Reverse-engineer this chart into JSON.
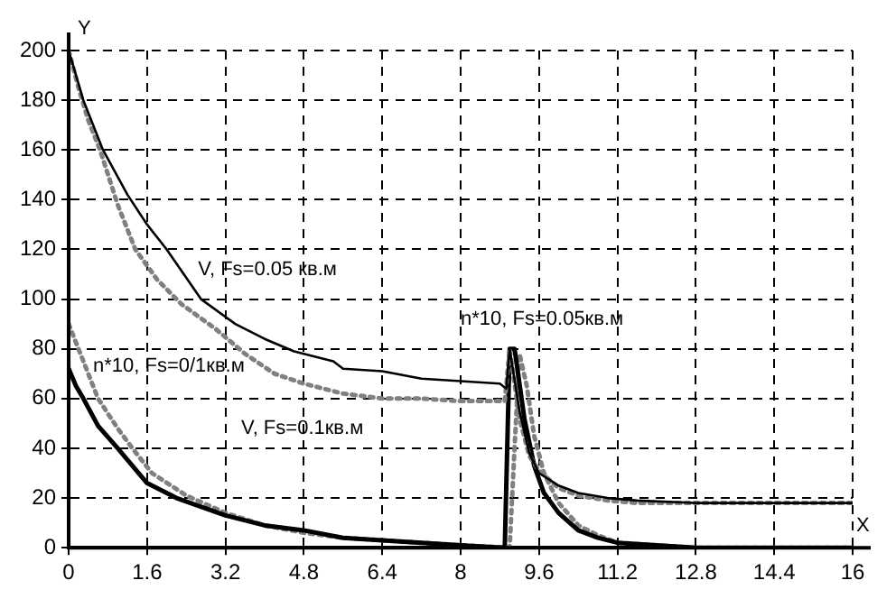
{
  "chart_data": {
    "type": "line",
    "xlabel": "X",
    "ylabel": "Y",
    "xlim": [
      0,
      16
    ],
    "ylim": [
      0,
      200
    ],
    "xticks": [
      0,
      1.6,
      3.2,
      4.8,
      6.4,
      8,
      9.6,
      11.2,
      12.8,
      14.4,
      16
    ],
    "yticks": [
      0,
      20,
      40,
      60,
      80,
      100,
      120,
      140,
      160,
      180,
      200
    ],
    "grid": true,
    "marker": "none",
    "series": [
      {
        "color": "#000000",
        "line_style": "solid",
        "x": [
          0,
          0.3,
          0.7,
          1.2,
          1.6,
          2.0,
          2.7,
          3.4,
          4.0,
          4.6,
          5.4,
          5.6,
          6.4,
          7.2,
          8.0,
          8.8,
          8.93,
          9.0,
          9.2,
          9.4,
          9.6,
          10.0,
          10.4,
          11.0,
          11.6,
          12.8,
          14.4,
          16
        ],
        "values": [
          200,
          180,
          160,
          142,
          130,
          120,
          100,
          90,
          84,
          79,
          75,
          72,
          71,
          68,
          67,
          66,
          64,
          80,
          55,
          38,
          30,
          25,
          22,
          20,
          19,
          18,
          18,
          18
        ]
      },
      {
        "color": "#808080",
        "line_style": "dotted",
        "x": [
          0,
          0.2,
          0.4,
          0.64,
          1.0,
          1.36,
          1.8,
          2.3,
          3.0,
          3.6,
          4.2,
          4.8,
          5.6,
          6.4,
          7.2,
          8.0,
          8.9,
          9.0,
          9.2,
          9.4,
          9.6,
          10.0,
          10.4,
          11.0,
          11.6,
          12.8,
          14.4,
          16
        ],
        "values": [
          200,
          185,
          172,
          160,
          138,
          120,
          108,
          98,
          88,
          78,
          70,
          66,
          62,
          60,
          60,
          59,
          59,
          80,
          52,
          37,
          31,
          24,
          21,
          19,
          18,
          18,
          18,
          18
        ]
      },
      {
        "color": "#000000",
        "line_style": "solid",
        "x": [
          0,
          0.15,
          0.3,
          0.6,
          1.0,
          1.6,
          2.2,
          3.2,
          4.0,
          4.8,
          5.6,
          6.4,
          7.2,
          8.0,
          8.9,
          8.9,
          9.0,
          9.1,
          9.3,
          9.5,
          9.7,
          10.0,
          10.4,
          10.8,
          11.2,
          12.0,
          12.8,
          16
        ],
        "values": [
          72,
          65,
          60,
          49,
          40,
          26,
          20,
          13,
          9,
          7,
          4,
          3,
          2,
          1,
          0,
          0,
          80,
          80,
          52,
          33,
          22,
          14,
          7,
          4,
          2,
          1,
          0,
          0
        ]
      },
      {
        "color": "#808080",
        "line_style": "dotted",
        "x": [
          0,
          0.2,
          0.4,
          0.6,
          1.0,
          1.3,
          1.7,
          2.4,
          3.2,
          4.0,
          4.8,
          5.6,
          6.4,
          7.2,
          8.0,
          9.0,
          9.1,
          9.2,
          9.35,
          9.5,
          9.7,
          10.0,
          10.4,
          10.8,
          11.2,
          12.0,
          12.8,
          16
        ],
        "values": [
          90,
          80,
          70,
          60,
          48,
          40,
          30,
          21,
          14,
          9,
          6,
          4,
          3,
          2,
          1,
          0,
          40,
          78,
          65,
          45,
          30,
          18,
          9,
          5,
          2,
          1,
          0,
          0
        ]
      }
    ],
    "annotations": [
      "V, Fs=0.05 кв.м",
      "n*10, Fs=0/1кв.м",
      "V, Fs=0.1кв.м",
      "n*10, Fs=0.05кв.м"
    ]
  }
}
